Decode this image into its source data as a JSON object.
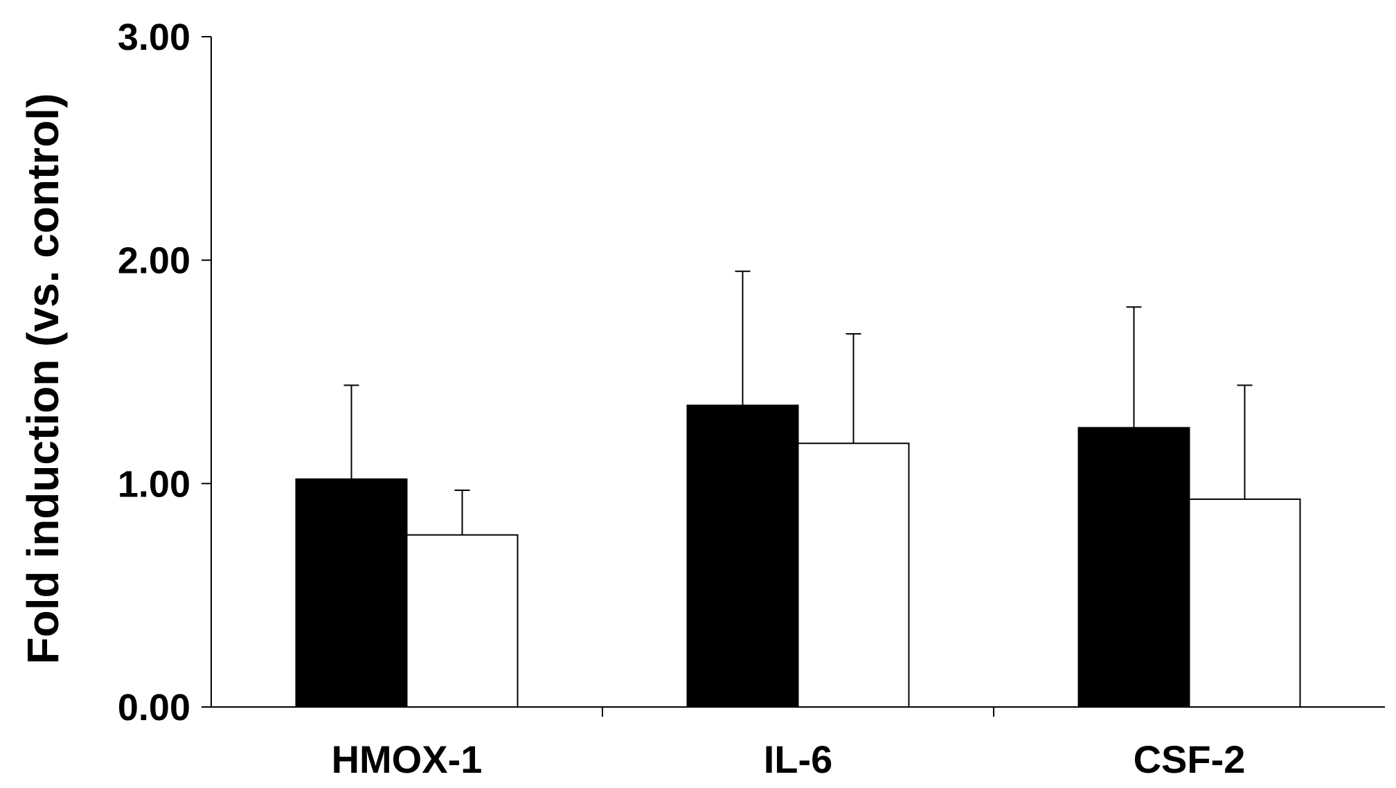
{
  "chart_data": {
    "type": "bar",
    "title": "",
    "xlabel": "",
    "ylabel": "Fold induction (vs. control)",
    "categories": [
      "HMOX-1",
      "IL-6",
      "CSF-2"
    ],
    "ylim": [
      0,
      3
    ],
    "yticks": [
      0,
      1,
      2,
      3
    ],
    "ytick_labels": [
      "0.00",
      "1.00",
      "2.00",
      "3.00"
    ],
    "grid": false,
    "legend": "none",
    "series": [
      {
        "color": "#000000",
        "values": [
          1.02,
          1.35,
          1.25
        ],
        "errors": [
          0.42,
          0.6,
          0.54
        ]
      },
      {
        "color": "#ffffff",
        "values": [
          0.77,
          1.18,
          0.93
        ],
        "errors": [
          0.2,
          0.49,
          0.51
        ]
      }
    ]
  }
}
